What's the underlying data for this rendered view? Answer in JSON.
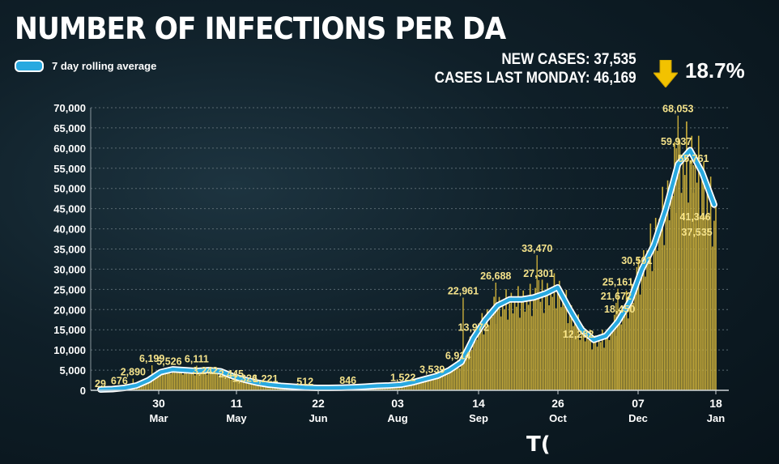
{
  "header": {
    "title": "NUMBER OF INFECTIONS PER DA",
    "new_cases": "NEW CASES: 37,535",
    "cases_last_monday": "CASES LAST MONDAY: 46,169",
    "change_pct": "18.7%",
    "change_direction": "down",
    "arrow_color": "#f2c200",
    "brand_fragment": "T("
  },
  "chart_data": {
    "type": "bar",
    "overlay": "line",
    "title": "NUMBER OF INFECTIONS PER DA",
    "ylim": [
      0,
      70000
    ],
    "yticks": [
      "0",
      "5,000",
      "10,000",
      "15,000",
      "20,000",
      "25,000",
      "30,000",
      "35,000",
      "40,000",
      "45,000",
      "50,000",
      "55,000",
      "60,000",
      "65,000",
      "70,000"
    ],
    "yvalues": [
      0,
      5000,
      10000,
      15000,
      20000,
      25000,
      30000,
      35000,
      40000,
      45000,
      50000,
      55000,
      60000,
      65000,
      70000
    ],
    "xticks": [
      {
        "day": "30",
        "month": "Mar"
      },
      {
        "day": "11",
        "month": "May"
      },
      {
        "day": "22",
        "month": "Jun"
      },
      {
        "day": "03",
        "month": "Aug"
      },
      {
        "day": "14",
        "month": "Sep"
      },
      {
        "day": "26",
        "month": "Oct"
      },
      {
        "day": "07",
        "month": "Dec"
      },
      {
        "day": "18",
        "month": "Jan"
      }
    ],
    "grid": true,
    "legend": {
      "position": "top-left",
      "entries": [
        "7 day rolling average"
      ]
    },
    "series": [
      {
        "name": "7 day rolling average",
        "color": "#29a9e0",
        "style": "line"
      }
    ],
    "bar_color": "#c9ad3a",
    "line_color": "#29a9e0",
    "rolling_average": [
      [
        0,
        200
      ],
      [
        7,
        300
      ],
      [
        14,
        600
      ],
      [
        21,
        1200
      ],
      [
        28,
        2500
      ],
      [
        35,
        4500
      ],
      [
        42,
        5200
      ],
      [
        49,
        5000
      ],
      [
        56,
        4800
      ],
      [
        63,
        5000
      ],
      [
        70,
        4700
      ],
      [
        77,
        3500
      ],
      [
        84,
        2600
      ],
      [
        91,
        1900
      ],
      [
        98,
        1400
      ],
      [
        105,
        1100
      ],
      [
        112,
        900
      ],
      [
        119,
        700
      ],
      [
        126,
        600
      ],
      [
        133,
        600
      ],
      [
        140,
        650
      ],
      [
        147,
        750
      ],
      [
        154,
        900
      ],
      [
        161,
        1100
      ],
      [
        168,
        1200
      ],
      [
        175,
        1400
      ],
      [
        182,
        2000
      ],
      [
        189,
        2800
      ],
      [
        196,
        3600
      ],
      [
        203,
        5000
      ],
      [
        210,
        7000
      ],
      [
        217,
        13000
      ],
      [
        224,
        17500
      ],
      [
        231,
        21000
      ],
      [
        238,
        22500
      ],
      [
        245,
        22500
      ],
      [
        252,
        23000
      ],
      [
        259,
        24000
      ],
      [
        266,
        25500
      ],
      [
        273,
        20000
      ],
      [
        280,
        15000
      ],
      [
        287,
        12500
      ],
      [
        294,
        13500
      ],
      [
        301,
        17000
      ],
      [
        308,
        22000
      ],
      [
        315,
        30000
      ],
      [
        322,
        36000
      ],
      [
        329,
        45000
      ],
      [
        336,
        56000
      ],
      [
        343,
        59500
      ],
      [
        350,
        54000
      ],
      [
        357,
        46000
      ]
    ],
    "daily_cases": [
      [
        0,
        100
      ],
      [
        7,
        100
      ],
      [
        14,
        300
      ],
      [
        21,
        700
      ],
      [
        28,
        2400
      ],
      [
        35,
        4400
      ],
      [
        42,
        5100
      ],
      [
        49,
        4700
      ],
      [
        56,
        4500
      ],
      [
        63,
        4800
      ],
      [
        70,
        4400
      ],
      [
        77,
        3000
      ],
      [
        84,
        2300
      ],
      [
        91,
        1700
      ],
      [
        98,
        1200
      ],
      [
        105,
        1000
      ],
      [
        112,
        700
      ],
      [
        119,
        500
      ],
      [
        126,
        500
      ],
      [
        133,
        500
      ],
      [
        140,
        600
      ],
      [
        147,
        700
      ],
      [
        154,
        800
      ],
      [
        161,
        1000
      ],
      [
        168,
        1100
      ],
      [
        175,
        1300
      ],
      [
        182,
        1900
      ],
      [
        189,
        2700
      ],
      [
        196,
        3400
      ],
      [
        203,
        5000
      ],
      [
        210,
        7000
      ],
      [
        217,
        13000
      ],
      [
        224,
        17500
      ],
      [
        231,
        20500
      ],
      [
        238,
        21500
      ],
      [
        245,
        22000
      ],
      [
        252,
        22500
      ],
      [
        259,
        23500
      ],
      [
        266,
        25000
      ],
      [
        273,
        19500
      ],
      [
        280,
        14500
      ],
      [
        287,
        12000
      ],
      [
        294,
        13000
      ],
      [
        301,
        17000
      ],
      [
        308,
        22500
      ],
      [
        315,
        30000
      ],
      [
        322,
        37000
      ],
      [
        329,
        45000
      ],
      [
        336,
        55000
      ],
      [
        343,
        57000
      ],
      [
        350,
        52000
      ],
      [
        357,
        42000
      ]
    ],
    "data_labels": [
      {
        "x": 0,
        "y": 29,
        "text": "29"
      },
      {
        "x": 11,
        "y": 676,
        "text": "676"
      },
      {
        "x": 19,
        "y": 2890,
        "text": "2,890"
      },
      {
        "x": 30,
        "y": 6199,
        "text": "6,199"
      },
      {
        "x": 40,
        "y": 5526,
        "text": "5,526"
      },
      {
        "x": 56,
        "y": 6111,
        "text": "6,111"
      },
      {
        "x": 61,
        "y": 3242,
        "text": "3,242"
      },
      {
        "x": 76,
        "y": 2445,
        "text": "2,445"
      },
      {
        "x": 84,
        "y": 1326,
        "text": "1,326"
      },
      {
        "x": 96,
        "y": 1221,
        "text": "1,221"
      },
      {
        "x": 119,
        "y": 512,
        "text": "512"
      },
      {
        "x": 144,
        "y": 846,
        "text": "846"
      },
      {
        "x": 176,
        "y": 1522,
        "text": "1,522"
      },
      {
        "x": 193,
        "y": 3539,
        "text": "3,539"
      },
      {
        "x": 208,
        "y": 6914,
        "text": "6,914"
      },
      {
        "x": 211,
        "y": 22961,
        "text": "22,961"
      },
      {
        "x": 217,
        "y": 13972,
        "text": "13,972"
      },
      {
        "x": 230,
        "y": 26688,
        "text": "26,688"
      },
      {
        "x": 254,
        "y": 33470,
        "text": "33,470"
      },
      {
        "x": 255,
        "y": 27301,
        "text": "27,301"
      },
      {
        "x": 278,
        "y": 12282,
        "text": "12,282"
      },
      {
        "x": 300,
        "y": 21672,
        "text": "21,672"
      },
      {
        "x": 302,
        "y": 18450,
        "text": "18,450"
      },
      {
        "x": 301,
        "y": 25161,
        "text": "25,161"
      },
      {
        "x": 312,
        "y": 30501,
        "text": "30,501"
      },
      {
        "x": 336,
        "y": 68053,
        "text": "68,053"
      },
      {
        "x": 335,
        "y": 59937,
        "text": "59,937"
      },
      {
        "x": 345,
        "y": 55761,
        "text": "55,761"
      },
      {
        "x": 346,
        "y": 41346,
        "text": "41,346"
      },
      {
        "x": 347,
        "y": 37535,
        "text": "37,535"
      }
    ],
    "xlim": [
      0,
      358
    ],
    "xtick_positions": [
      22,
      78,
      132,
      186,
      240,
      296,
      350,
      356
    ]
  }
}
